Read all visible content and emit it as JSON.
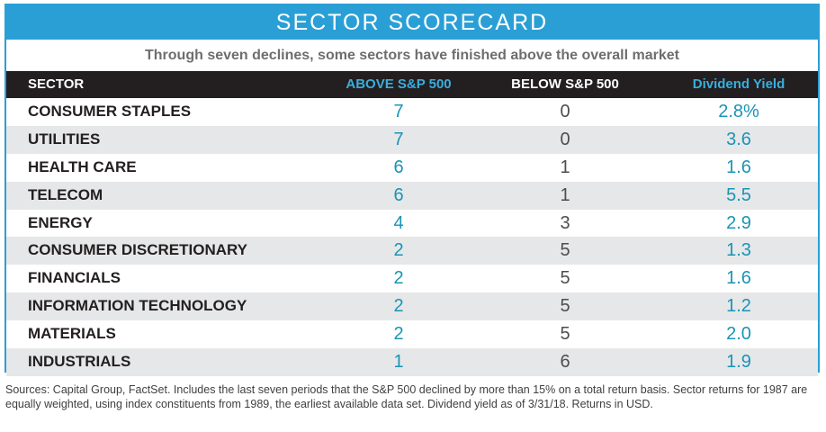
{
  "title": "SECTOR SCORECARD",
  "subtitle": "Through seven declines, some sectors have finished above the overall market",
  "columns": {
    "sector": "SECTOR",
    "above": "ABOVE S&P 500",
    "below": "BELOW S&P 500",
    "yield": "Dividend Yield"
  },
  "rows": [
    {
      "sector": "CONSUMER STAPLES",
      "above": "7",
      "below": "0",
      "yield": "2.8%"
    },
    {
      "sector": "UTILITIES",
      "above": "7",
      "below": "0",
      "yield": "3.6"
    },
    {
      "sector": "HEALTH CARE",
      "above": "6",
      "below": "1",
      "yield": "1.6"
    },
    {
      "sector": "TELECOM",
      "above": "6",
      "below": "1",
      "yield": "5.5"
    },
    {
      "sector": "ENERGY",
      "above": "4",
      "below": "3",
      "yield": "2.9"
    },
    {
      "sector": "CONSUMER DISCRETIONARY",
      "above": "2",
      "below": "5",
      "yield": "1.3"
    },
    {
      "sector": "FINANCIALS",
      "above": "2",
      "below": "5",
      "yield": "1.6"
    },
    {
      "sector": "INFORMATION TECHNOLOGY",
      "above": "2",
      "below": "5",
      "yield": "1.2"
    },
    {
      "sector": "MATERIALS",
      "above": "2",
      "below": "5",
      "yield": "2.0"
    },
    {
      "sector": "INDUSTRIALS",
      "above": "1",
      "below": "6",
      "yield": "1.9"
    }
  ],
  "footnote": "Sources: Capital Group, FactSet. Includes the last seven periods that the S&P 500 declined by more than 15% on a total return basis. Sector returns for 1987 are equally weighted, using index constituents from 1989, the earliest available data set. Dividend yield as of 3/31/18. Returns in USD.",
  "colors": {
    "accent": "#2a9fd6",
    "header_bg": "#231f20",
    "value_teal": "#1a94b5",
    "stripe": "#e6e7e8"
  }
}
